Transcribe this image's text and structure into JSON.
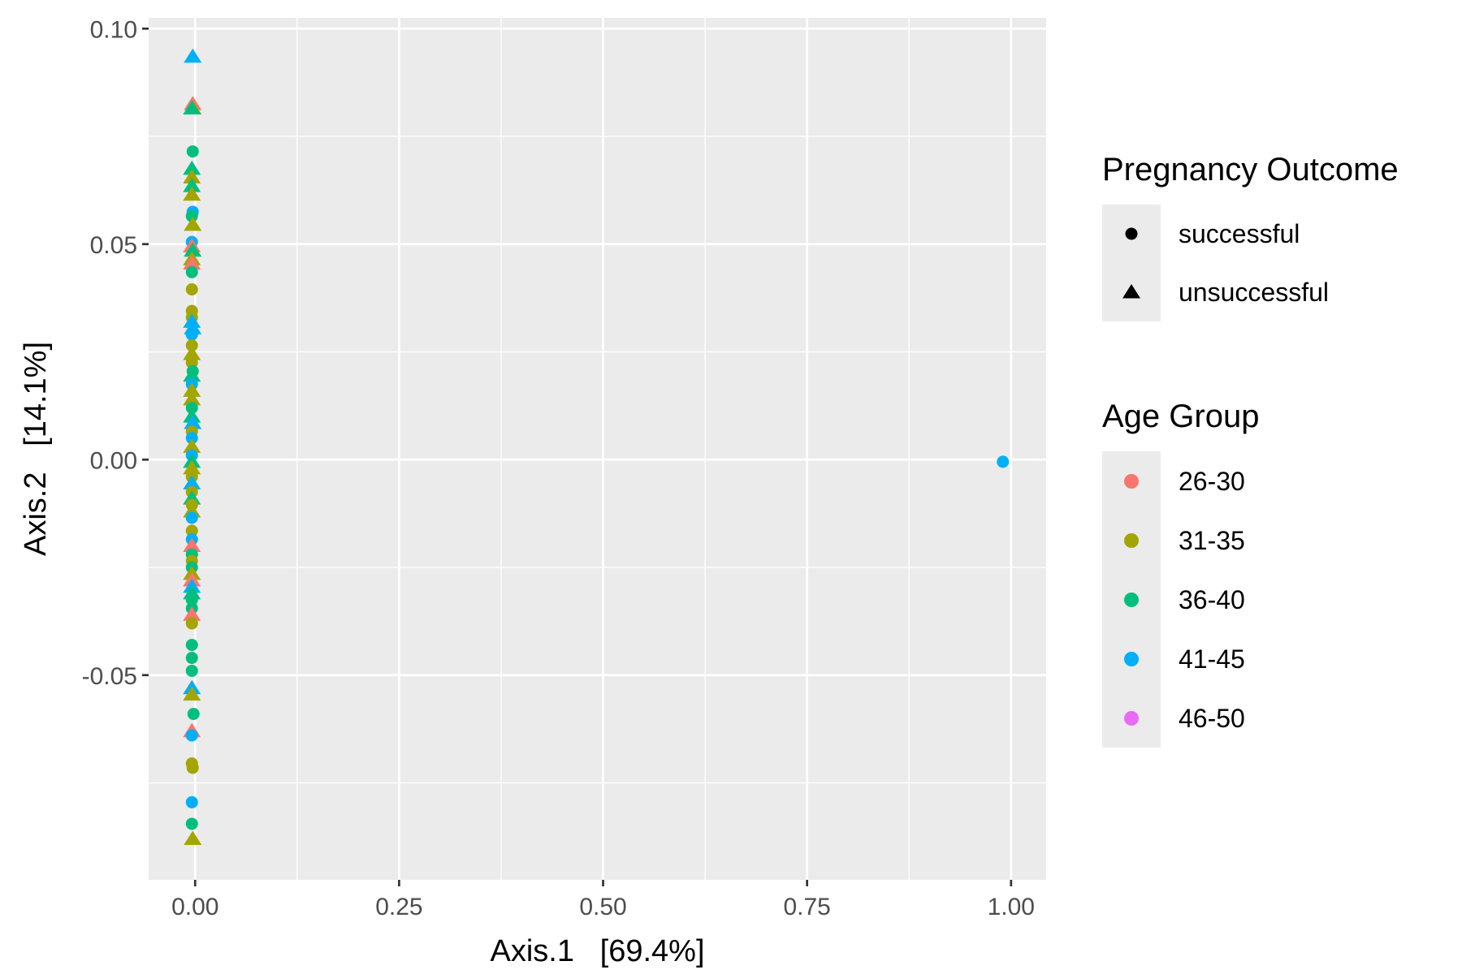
{
  "chart_data": {
    "type": "scatter",
    "xlabel": "Axis.1   [69.4%]",
    "ylabel": "Axis.2   [14.1%]",
    "xlim": [
      -0.057,
      1.043
    ],
    "ylim": [
      -0.0975,
      0.1025
    ],
    "x_ticks": [
      0.0,
      0.25,
      0.5,
      0.75,
      1.0
    ],
    "x_tick_labels": [
      "0.00",
      "0.25",
      "0.50",
      "0.75",
      "1.00"
    ],
    "y_ticks": [
      -0.05,
      0.0,
      0.05,
      0.1
    ],
    "y_tick_labels": [
      "-0.05",
      "0.00",
      "0.05",
      "0.10"
    ],
    "grid": true,
    "legend_position": "right",
    "colors": {
      "26-30": "#F8766D",
      "31-35": "#A3A500",
      "36-40": "#00BF7D",
      "41-45": "#00B0F6",
      "46-50": "#E76BF3"
    },
    "legends": {
      "shape": {
        "title": "Pregnancy Outcome",
        "entries": [
          {
            "label": "successful",
            "shape": "circle"
          },
          {
            "label": "unsuccessful",
            "shape": "triangle"
          }
        ]
      },
      "color": {
        "title": "Age Group",
        "entries": [
          "26-30",
          "31-35",
          "36-40",
          "41-45",
          "46-50"
        ]
      }
    },
    "points": [
      {
        "x": -0.003,
        "y": 0.0935,
        "outcome": "unsuccessful",
        "age": "41-45"
      },
      {
        "x": -0.003,
        "y": 0.0825,
        "outcome": "unsuccessful",
        "age": "26-30"
      },
      {
        "x": -0.003,
        "y": 0.0815,
        "outcome": "unsuccessful",
        "age": "31-35"
      },
      {
        "x": -0.004,
        "y": 0.0815,
        "outcome": "unsuccessful",
        "age": "36-40"
      },
      {
        "x": -0.003,
        "y": 0.0715,
        "outcome": "successful",
        "age": "36-40"
      },
      {
        "x": -0.004,
        "y": 0.0675,
        "outcome": "unsuccessful",
        "age": "36-40"
      },
      {
        "x": -0.004,
        "y": 0.0655,
        "outcome": "unsuccessful",
        "age": "31-35"
      },
      {
        "x": -0.004,
        "y": 0.0635,
        "outcome": "unsuccessful",
        "age": "36-40"
      },
      {
        "x": -0.004,
        "y": 0.0615,
        "outcome": "unsuccessful",
        "age": "31-35"
      },
      {
        "x": -0.003,
        "y": 0.0575,
        "outcome": "successful",
        "age": "41-45"
      },
      {
        "x": -0.004,
        "y": 0.0565,
        "outcome": "successful",
        "age": "36-40"
      },
      {
        "x": -0.003,
        "y": 0.0545,
        "outcome": "unsuccessful",
        "age": "31-35"
      },
      {
        "x": -0.004,
        "y": 0.0505,
        "outcome": "successful",
        "age": "41-45"
      },
      {
        "x": -0.004,
        "y": 0.0495,
        "outcome": "unsuccessful",
        "age": "26-30"
      },
      {
        "x": -0.003,
        "y": 0.0485,
        "outcome": "unsuccessful",
        "age": "36-40"
      },
      {
        "x": -0.004,
        "y": 0.0465,
        "outcome": "unsuccessful",
        "age": "31-35"
      },
      {
        "x": -0.004,
        "y": 0.0455,
        "outcome": "unsuccessful",
        "age": "26-30"
      },
      {
        "x": -0.004,
        "y": 0.0435,
        "outcome": "successful",
        "age": "36-40"
      },
      {
        "x": -0.004,
        "y": 0.0395,
        "outcome": "successful",
        "age": "31-35"
      },
      {
        "x": -0.004,
        "y": 0.0345,
        "outcome": "successful",
        "age": "31-35"
      },
      {
        "x": -0.004,
        "y": 0.033,
        "outcome": "successful",
        "age": "31-35"
      },
      {
        "x": -0.004,
        "y": 0.032,
        "outcome": "unsuccessful",
        "age": "41-45"
      },
      {
        "x": -0.003,
        "y": 0.0305,
        "outcome": "unsuccessful",
        "age": "41-45"
      },
      {
        "x": -0.004,
        "y": 0.029,
        "outcome": "successful",
        "age": "41-45"
      },
      {
        "x": -0.004,
        "y": 0.0265,
        "outcome": "successful",
        "age": "31-35"
      },
      {
        "x": -0.004,
        "y": 0.0245,
        "outcome": "unsuccessful",
        "age": "31-35"
      },
      {
        "x": -0.004,
        "y": 0.0225,
        "outcome": "successful",
        "age": "31-35"
      },
      {
        "x": -0.003,
        "y": 0.0205,
        "outcome": "successful",
        "age": "36-40"
      },
      {
        "x": -0.004,
        "y": 0.0195,
        "outcome": "unsuccessful",
        "age": "36-40"
      },
      {
        "x": -0.004,
        "y": 0.0175,
        "outcome": "successful",
        "age": "41-45"
      },
      {
        "x": -0.004,
        "y": 0.016,
        "outcome": "unsuccessful",
        "age": "31-35"
      },
      {
        "x": -0.004,
        "y": 0.014,
        "outcome": "unsuccessful",
        "age": "31-35"
      },
      {
        "x": -0.004,
        "y": 0.012,
        "outcome": "successful",
        "age": "36-40"
      },
      {
        "x": -0.004,
        "y": 0.01,
        "outcome": "unsuccessful",
        "age": "36-40"
      },
      {
        "x": -0.003,
        "y": 0.0085,
        "outcome": "unsuccessful",
        "age": "41-45"
      },
      {
        "x": -0.004,
        "y": 0.0065,
        "outcome": "successful",
        "age": "31-35"
      },
      {
        "x": -0.004,
        "y": 0.005,
        "outcome": "successful",
        "age": "41-45"
      },
      {
        "x": -0.004,
        "y": 0.003,
        "outcome": "unsuccessful",
        "age": "31-35"
      },
      {
        "x": -0.004,
        "y": 0.001,
        "outcome": "successful",
        "age": "41-45"
      },
      {
        "x": -0.004,
        "y": -0.0005,
        "outcome": "unsuccessful",
        "age": "36-40"
      },
      {
        "x": -0.004,
        "y": -0.002,
        "outcome": "unsuccessful",
        "age": "31-35"
      },
      {
        "x": -0.004,
        "y": -0.004,
        "outcome": "successful",
        "age": "31-35"
      },
      {
        "x": -0.004,
        "y": -0.0055,
        "outcome": "unsuccessful",
        "age": "41-45"
      },
      {
        "x": -0.004,
        "y": -0.0075,
        "outcome": "successful",
        "age": "31-35"
      },
      {
        "x": -0.004,
        "y": -0.009,
        "outcome": "unsuccessful",
        "age": "36-40"
      },
      {
        "x": -0.004,
        "y": -0.0105,
        "outcome": "successful",
        "age": "31-35"
      },
      {
        "x": -0.004,
        "y": -0.012,
        "outcome": "unsuccessful",
        "age": "31-35"
      },
      {
        "x": -0.004,
        "y": -0.0135,
        "outcome": "successful",
        "age": "41-45"
      },
      {
        "x": -0.004,
        "y": -0.0165,
        "outcome": "successful",
        "age": "31-35"
      },
      {
        "x": -0.004,
        "y": -0.0185,
        "outcome": "successful",
        "age": "41-45"
      },
      {
        "x": -0.004,
        "y": -0.02,
        "outcome": "unsuccessful",
        "age": "26-30"
      },
      {
        "x": -0.004,
        "y": -0.022,
        "outcome": "successful",
        "age": "36-40"
      },
      {
        "x": -0.004,
        "y": -0.0235,
        "outcome": "successful",
        "age": "31-35"
      },
      {
        "x": -0.004,
        "y": -0.025,
        "outcome": "successful",
        "age": "36-40"
      },
      {
        "x": -0.004,
        "y": -0.0265,
        "outcome": "unsuccessful",
        "age": "31-35"
      },
      {
        "x": -0.004,
        "y": -0.028,
        "outcome": "unsuccessful",
        "age": "26-30"
      },
      {
        "x": -0.004,
        "y": -0.0295,
        "outcome": "unsuccessful",
        "age": "41-45"
      },
      {
        "x": -0.004,
        "y": -0.031,
        "outcome": "unsuccessful",
        "age": "36-40"
      },
      {
        "x": -0.004,
        "y": -0.0325,
        "outcome": "successful",
        "age": "36-40"
      },
      {
        "x": -0.004,
        "y": -0.0345,
        "outcome": "successful",
        "age": "36-40"
      },
      {
        "x": -0.004,
        "y": -0.036,
        "outcome": "unsuccessful",
        "age": "26-30"
      },
      {
        "x": -0.004,
        "y": -0.038,
        "outcome": "successful",
        "age": "31-35"
      },
      {
        "x": -0.004,
        "y": -0.043,
        "outcome": "successful",
        "age": "36-40"
      },
      {
        "x": -0.004,
        "y": -0.046,
        "outcome": "successful",
        "age": "36-40"
      },
      {
        "x": -0.004,
        "y": -0.049,
        "outcome": "successful",
        "age": "36-40"
      },
      {
        "x": -0.004,
        "y": -0.053,
        "outcome": "unsuccessful",
        "age": "41-45"
      },
      {
        "x": -0.004,
        "y": -0.0545,
        "outcome": "unsuccessful",
        "age": "31-35"
      },
      {
        "x": -0.002,
        "y": -0.059,
        "outcome": "successful",
        "age": "36-40"
      },
      {
        "x": -0.004,
        "y": -0.063,
        "outcome": "unsuccessful",
        "age": "26-30"
      },
      {
        "x": -0.004,
        "y": -0.064,
        "outcome": "successful",
        "age": "41-45"
      },
      {
        "x": -0.004,
        "y": -0.0705,
        "outcome": "successful",
        "age": "31-35"
      },
      {
        "x": -0.003,
        "y": -0.0715,
        "outcome": "successful",
        "age": "31-35"
      },
      {
        "x": -0.004,
        "y": -0.0795,
        "outcome": "successful",
        "age": "41-45"
      },
      {
        "x": -0.004,
        "y": -0.0845,
        "outcome": "successful",
        "age": "36-40"
      },
      {
        "x": -0.003,
        "y": -0.088,
        "outcome": "unsuccessful",
        "age": "31-35"
      },
      {
        "x": 0.99,
        "y": -0.0005,
        "outcome": "successful",
        "age": "41-45"
      }
    ]
  }
}
